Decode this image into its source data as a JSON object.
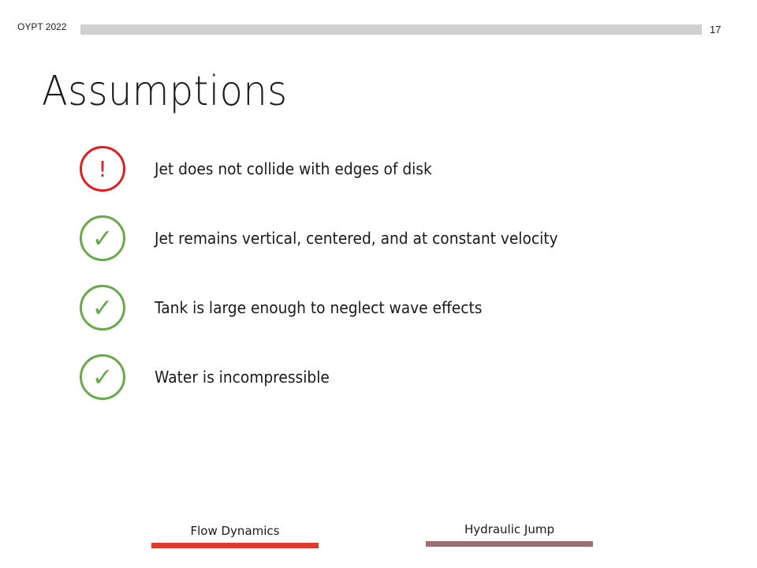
{
  "header": {
    "label": "OYPT 2022",
    "page_number": "17"
  },
  "title": "Assumptions",
  "assumptions": [
    {
      "status": "warning",
      "icon": "exclamation-icon",
      "symbol": "!",
      "color": "#e02020",
      "text": "Jet does not collide with edges of disk"
    },
    {
      "status": "ok",
      "icon": "checkmark-icon",
      "symbol": "✓",
      "color": "#6aaa4a",
      "text": "Jet remains vertical, centered, and at constant velocity"
    },
    {
      "status": "ok",
      "icon": "checkmark-icon",
      "symbol": "✓",
      "color": "#6aaa4a",
      "text": "Tank is large enough to neglect wave effects"
    },
    {
      "status": "ok",
      "icon": "checkmark-icon",
      "symbol": "✓",
      "color": "#6aaa4a",
      "text": "Water is incompressible"
    }
  ],
  "footer_nav": [
    {
      "label": "Flow Dynamics",
      "color": "#e03a2f"
    },
    {
      "label": "Hydraulic Jump",
      "color": "#a06e70"
    }
  ]
}
